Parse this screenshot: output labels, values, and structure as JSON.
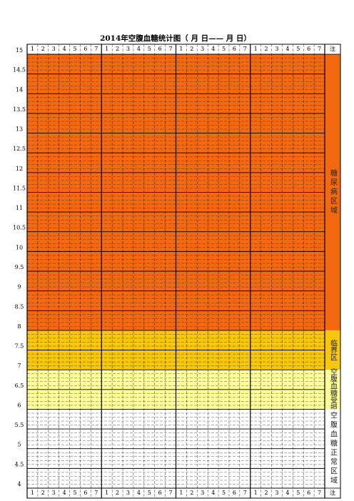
{
  "chart_data": {
    "type": "band",
    "title": "2014年空腹血糖统计图（    月    日——    月    日）",
    "header": [
      "1",
      "2",
      "3",
      "4",
      "5",
      "6",
      "7",
      "1",
      "2",
      "3",
      "4",
      "5",
      "6",
      "7",
      "1",
      "2",
      "3",
      "4",
      "5",
      "6",
      "7",
      "1",
      "2",
      "3",
      "4",
      "5",
      "6",
      "7"
    ],
    "note_header": "注",
    "ylim": [
      4,
      15
    ],
    "yticks": [
      4,
      4.5,
      5,
      5.5,
      6,
      6.5,
      7,
      7.5,
      8,
      8.5,
      9,
      9.5,
      10,
      10.5,
      11,
      11.5,
      12,
      12.5,
      13,
      13.5,
      14,
      14.5,
      15
    ],
    "zones": [
      {
        "label": "糖尿病区域",
        "from": 8,
        "to": 15,
        "color": "#f4680f"
      },
      {
        "label": "临界区",
        "from": 7,
        "to": 8,
        "color": "#f8c70a"
      },
      {
        "label": "空腹血糖受损",
        "from": 6,
        "to": 7,
        "color": "#ffff99"
      },
      {
        "label": "空腹血糖正常区域",
        "from": 4,
        "to": 6,
        "color": "#ffffff"
      }
    ]
  }
}
